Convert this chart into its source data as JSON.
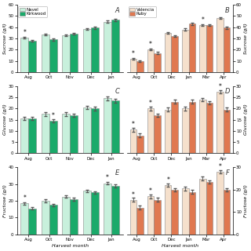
{
  "panel_A": {
    "months": [
      "Aug",
      "Oct",
      "Nov",
      "Dec",
      "Jan"
    ],
    "navel": [
      30.5,
      33.5,
      33.0,
      38.5,
      45.0
    ],
    "kirkwood": [
      28.0,
      29.0,
      34.0,
      39.5,
      46.5
    ],
    "ylabel": "Sucrose (g/l)",
    "ylim": [
      0,
      60
    ],
    "yticks": [
      0,
      10,
      20,
      30,
      40,
      50,
      60
    ],
    "label": "A",
    "stars": [
      {
        "idx": 0,
        "series": "navel"
      }
    ]
  },
  "panel_B": {
    "months": [
      "Aug",
      "Oct",
      "Dec",
      "Jan",
      "Mar",
      "Apr"
    ],
    "valencia": [
      12.0,
      20.0,
      35.0,
      38.0,
      42.0,
      48.0
    ],
    "ruby": [
      9.5,
      17.0,
      32.0,
      43.0,
      42.0,
      39.5
    ],
    "ylabel": "Sucrose (g/l)",
    "ylim": [
      0,
      60
    ],
    "yticks": [
      0,
      10,
      20,
      30,
      40,
      50,
      60
    ],
    "label": "B",
    "stars": [
      {
        "idx": 0,
        "series": "valencia"
      },
      {
        "idx": 1,
        "series": "valencia"
      },
      {
        "idx": 4,
        "series": "valencia"
      }
    ]
  },
  "panel_C": {
    "months": [
      "Aug",
      "Oct",
      "Nov",
      "Dec",
      "Jan"
    ],
    "navel": [
      15.5,
      17.5,
      17.5,
      20.5,
      24.5
    ],
    "kirkwood": [
      15.5,
      14.5,
      17.0,
      20.0,
      23.5
    ],
    "ylabel": "Glucose (g/l)",
    "ylim": [
      0,
      30
    ],
    "yticks": [
      0,
      5,
      10,
      15,
      20,
      25,
      30
    ],
    "label": "C",
    "stars": [
      {
        "idx": 1,
        "series": "kirkwood"
      }
    ]
  },
  "panel_D": {
    "months": [
      "Aug",
      "Oct",
      "Dec",
      "Jan",
      "Mar",
      "Apr"
    ],
    "valencia": [
      10.5,
      20.0,
      19.5,
      20.0,
      24.0,
      27.5
    ],
    "ruby": [
      8.0,
      17.0,
      23.0,
      23.0,
      22.5,
      19.5
    ],
    "ylabel": "Glucose (g/l)",
    "ylim": [
      0,
      30
    ],
    "yticks": [
      0,
      5,
      10,
      15,
      20,
      25,
      30
    ],
    "label": "D",
    "stars": [
      {
        "idx": 0,
        "series": "valencia"
      },
      {
        "idx": 1,
        "series": "valencia"
      },
      {
        "idx": 5,
        "series": "valencia"
      }
    ]
  },
  "panel_E": {
    "months": [
      "Aug",
      "Oct",
      "Nov",
      "Dec",
      "Jan"
    ],
    "navel": [
      18.5,
      20.0,
      22.5,
      26.0,
      30.5
    ],
    "kirkwood": [
      15.5,
      17.5,
      21.0,
      25.0,
      29.0
    ],
    "ylabel": "Fructose (g/l)",
    "ylim": [
      0,
      40
    ],
    "yticks": [
      0,
      10,
      20,
      30,
      40
    ],
    "label": "E",
    "stars": [
      {
        "idx": 0,
        "series": "navel"
      },
      {
        "idx": 4,
        "series": "navel"
      }
    ]
  },
  "panel_F": {
    "months": [
      "Aug",
      "Oct",
      "Dec",
      "Jan",
      "Mar",
      "Apr"
    ],
    "valencia": [
      15.5,
      17.0,
      22.0,
      20.5,
      25.0,
      28.0
    ],
    "ruby": [
      12.0,
      15.5,
      20.0,
      19.0,
      23.5,
      20.0
    ],
    "ylabel": "Fructose (g/l)",
    "ylim": [
      0,
      30
    ],
    "yticks": [
      0,
      10,
      20,
      30
    ],
    "label": "F",
    "stars": [
      {
        "idx": 0,
        "series": "valencia"
      },
      {
        "idx": 1,
        "series": "valencia"
      },
      {
        "idx": 2,
        "series": "valencia"
      },
      {
        "idx": 5,
        "series": "valencia"
      }
    ]
  },
  "colors": {
    "navel": "#c8f0dc",
    "kirkwood": "#1aaa6a",
    "valencia": "#f5e0cc",
    "ruby": "#e07850"
  },
  "bar_width": 0.38,
  "xlabel": "Harvest month"
}
